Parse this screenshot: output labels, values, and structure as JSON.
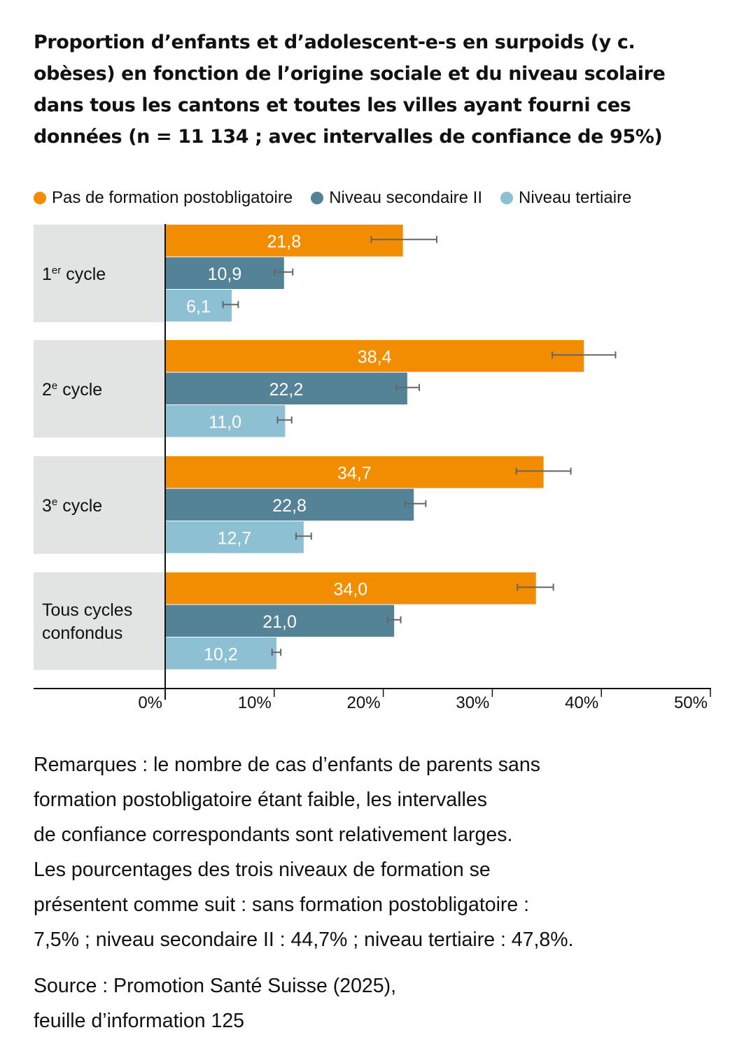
{
  "title_lines": [
    "Proportion d’enfants et d’adolescent-e-s en surpoids (y c.",
    "obèses) en fonction de l’origine sociale et du niveau scolaire",
    "dans tous les cantons et toutes les villes ayant fourni ces",
    "données (n = 11 134 ; avec intervalles de confiance de 95%)"
  ],
  "notes_lines": [
    "Remarques : le nombre de cas d’enfants de parents sans",
    "formation postobligatoire étant faible, les intervalles",
    "de confiance correspondants sont relativement larges.",
    "Les pourcentages des trois niveaux de formation se",
    "présentent comme suit : sans formation postobligatoire :",
    "7,5% ; niveau secondaire II : 44,7% ; niveau tertiaire : 47,8%."
  ],
  "source_lines": [
    "Source : Promotion Santé Suisse (2025),",
    "feuille d’information 125"
  ],
  "chart_data": {
    "type": "bar",
    "orientation": "horizontal",
    "title": "Proportion d’enfants et d’adolescent-e-s en surpoids (y c. obèses) en fonction de l’origine sociale et du niveau scolaire dans tous les cantons et toutes les villes ayant fourni ces données (n = 11 134 ; avec intervalles de confiance de 95%)",
    "xlabel": "",
    "ylabel": "",
    "xlim": [
      0,
      50
    ],
    "grid": false,
    "legend_position": "top",
    "x_ticks": [
      0,
      10,
      20,
      30,
      40,
      50
    ],
    "x_tick_labels": [
      "0%",
      "10%",
      "20%",
      "30%",
      "40%",
      "50%"
    ],
    "categories": [
      {
        "main": "1",
        "sup": "er",
        "rest": " cycle"
      },
      {
        "main": "2",
        "sup": "e",
        "rest": " cycle"
      },
      {
        "main": "3",
        "sup": "e",
        "rest": " cycle"
      },
      {
        "main": "Tous cycles",
        "sup": "",
        "rest": "",
        "line2": "confondus"
      }
    ],
    "series": [
      {
        "name": "Pas de formation postobligatoire",
        "color": "#f28c00",
        "values": [
          21.8,
          38.4,
          34.7,
          34.0
        ],
        "labels": [
          "21,8",
          "38,4",
          "34,7",
          "34,0"
        ],
        "ci_low": [
          18.9,
          35.5,
          32.2,
          32.3
        ],
        "ci_high": [
          24.9,
          41.3,
          37.2,
          35.6
        ]
      },
      {
        "name": "Niveau secondaire II",
        "color": "#548297",
        "values": [
          10.9,
          22.2,
          22.8,
          21.0
        ],
        "labels": [
          "10,9",
          "22,2",
          "22,8",
          "21,0"
        ],
        "ci_low": [
          10.0,
          21.2,
          22.0,
          20.4
        ],
        "ci_high": [
          11.7,
          23.3,
          23.9,
          21.6
        ]
      },
      {
        "name": "Niveau tertiaire",
        "color": "#8dc0d2",
        "values": [
          6.1,
          11.0,
          12.7,
          10.2
        ],
        "labels": [
          "6,1",
          "11,0",
          "12,7",
          "10,2"
        ],
        "ci_low": [
          5.3,
          10.3,
          12.0,
          9.8
        ],
        "ci_high": [
          6.7,
          11.6,
          13.4,
          10.6
        ]
      }
    ],
    "colors": {
      "category_band": "#e2e3e3",
      "axis": "#111111",
      "error_bar": "#666666",
      "bar_label": "#ffffff"
    }
  }
}
